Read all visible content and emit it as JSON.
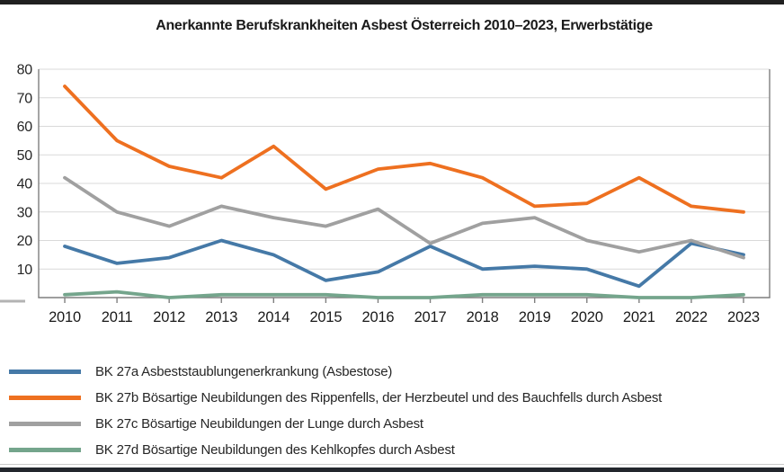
{
  "page": {
    "top_bar_color": "#202020",
    "bottom_bar_color": "#23262d"
  },
  "chart_data": {
    "type": "line",
    "title": "Anerkannte Berufskrankheiten Asbest Österreich 2010–2023, Erwerbstätige",
    "xlabel": "",
    "ylabel": "",
    "categories": [
      "2010",
      "2011",
      "2012",
      "2013",
      "2014",
      "2015",
      "2016",
      "2017",
      "2018",
      "2019",
      "2020",
      "2021",
      "2022",
      "2023"
    ],
    "series": [
      {
        "name": "BK 27a Asbeststaublungenerkrankung (Asbestose)",
        "color": "#4579A7",
        "values": [
          18,
          12,
          14,
          20,
          15,
          6,
          9,
          18,
          10,
          11,
          10,
          4,
          19,
          15
        ]
      },
      {
        "name": "BK 27b Bösartige Neubildungen des Rippenfells, der Herzbeutel und des Bauchfells durch Asbest",
        "color": "#EE7020",
        "values": [
          74,
          55,
          46,
          42,
          53,
          38,
          45,
          47,
          42,
          32,
          33,
          42,
          32,
          30
        ]
      },
      {
        "name": "BK 27c Bösartige Neubildungen der Lunge durch Asbest",
        "color": "#A0A0A0",
        "values": [
          42,
          30,
          25,
          32,
          28,
          25,
          31,
          19,
          26,
          28,
          20,
          16,
          20,
          14
        ]
      },
      {
        "name": "BK 27d Bösartige Neubildungen des Kehlkopfes durch Asbest",
        "color": "#74A58C",
        "values": [
          1,
          2,
          0,
          1,
          1,
          1,
          0,
          0,
          1,
          1,
          1,
          0,
          0,
          1
        ]
      }
    ],
    "ylim": [
      0,
      80
    ],
    "ytick_step": 10,
    "y_zero_label": "–",
    "grid": true,
    "legend_position": "bottom-left",
    "grid_color": "#d9d9d9",
    "axis_color": "#7f7f7f",
    "label_color": "#262626",
    "tick_label_color": "#1a1a1a"
  }
}
